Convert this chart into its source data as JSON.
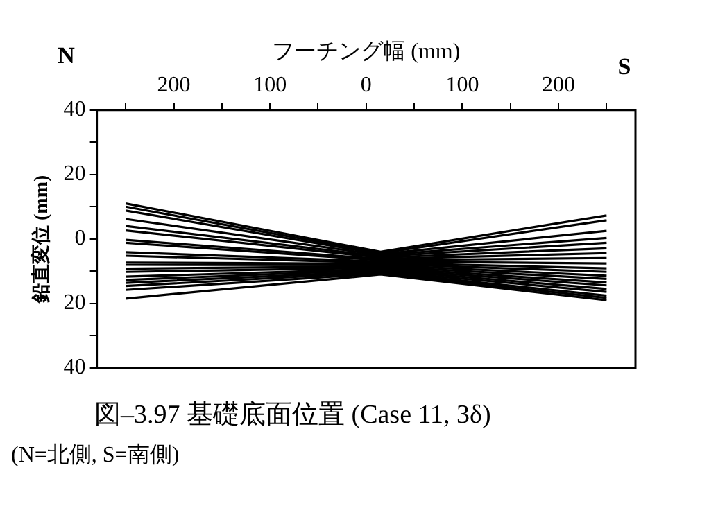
{
  "chart_data": {
    "type": "line",
    "title": "図–3.97 基礎底面位置 (Case 11, 3δ)",
    "xlabel": "フーチング幅 (mm)",
    "ylabel": "鉛直変位 (mm)",
    "annotations": [
      "N",
      "S",
      "(N=北側, S=南側)"
    ],
    "x": [
      -250,
      15,
      250
    ],
    "xlim": [
      -280,
      280
    ],
    "xticks": [
      {
        "value": -250,
        "label": null
      },
      {
        "value": -200,
        "label": "200"
      },
      {
        "value": -150,
        "label": null
      },
      {
        "value": -100,
        "label": "100"
      },
      {
        "value": -50,
        "label": null
      },
      0,
      {
        "value": 50,
        "label": null
      },
      {
        "value": 100,
        "label": "100"
      },
      {
        "value": 150,
        "label": null
      },
      {
        "value": 200,
        "label": "200"
      },
      {
        "value": 250,
        "label": null
      }
    ],
    "ylim": [
      40,
      -40
    ],
    "yticks": [
      {
        "value": -40,
        "label": "40"
      },
      {
        "value": -30,
        "label": null
      },
      {
        "value": -20,
        "label": "20"
      },
      {
        "value": -10,
        "label": null
      },
      0,
      {
        "value": 10,
        "label": null
      },
      {
        "value": 20,
        "label": "20"
      },
      {
        "value": 30,
        "label": null
      },
      {
        "value": 40,
        "label": "40"
      }
    ],
    "grid": false,
    "legend": false,
    "marker": "none",
    "line_style": "solid",
    "series": [
      {
        "color": "#000000",
        "values": [
          -11,
          4,
          -7.3
        ]
      },
      {
        "color": "#000000",
        "values": [
          -10,
          4.4,
          -5.8
        ]
      },
      {
        "color": "#000000",
        "values": [
          -8.8,
          4.7,
          -2.5
        ]
      },
      {
        "color": "#000000",
        "values": [
          -6.2,
          5,
          -0.3
        ]
      },
      {
        "color": "#000000",
        "values": [
          -4,
          5.4,
          1.2
        ]
      },
      {
        "color": "#000000",
        "values": [
          -2.6,
          5.8,
          2.9
        ]
      },
      {
        "color": "#000000",
        "values": [
          0.3,
          6.2,
          4.4
        ]
      },
      {
        "color": "#000000",
        "values": [
          1.2,
          6.6,
          5.9
        ]
      },
      {
        "color": "#000000",
        "values": [
          4.1,
          7,
          7.6
        ]
      },
      {
        "color": "#000000",
        "values": [
          5.2,
          7.4,
          9.1
        ]
      },
      {
        "color": "#000000",
        "values": [
          7.3,
          7.7,
          10.2
        ]
      },
      {
        "color": "#000000",
        "values": [
          8,
          8.1,
          11.4
        ]
      },
      {
        "color": "#000000",
        "values": [
          9.2,
          8.5,
          12.4
        ]
      },
      {
        "color": "#000000",
        "values": [
          10.2,
          8.9,
          13.5
        ]
      },
      {
        "color": "#000000",
        "values": [
          11.7,
          9.3,
          14.4
        ]
      },
      {
        "color": "#000000",
        "values": [
          12.7,
          9.6,
          15.5
        ]
      },
      {
        "color": "#000000",
        "values": [
          13.6,
          10,
          16.4
        ]
      },
      {
        "color": "#000000",
        "values": [
          14.6,
          10.3,
          17.6
        ]
      },
      {
        "color": "#000000",
        "values": [
          15.8,
          10.7,
          18.3
        ]
      },
      {
        "color": "#000000",
        "values": [
          18.5,
          11,
          19
        ]
      }
    ]
  }
}
